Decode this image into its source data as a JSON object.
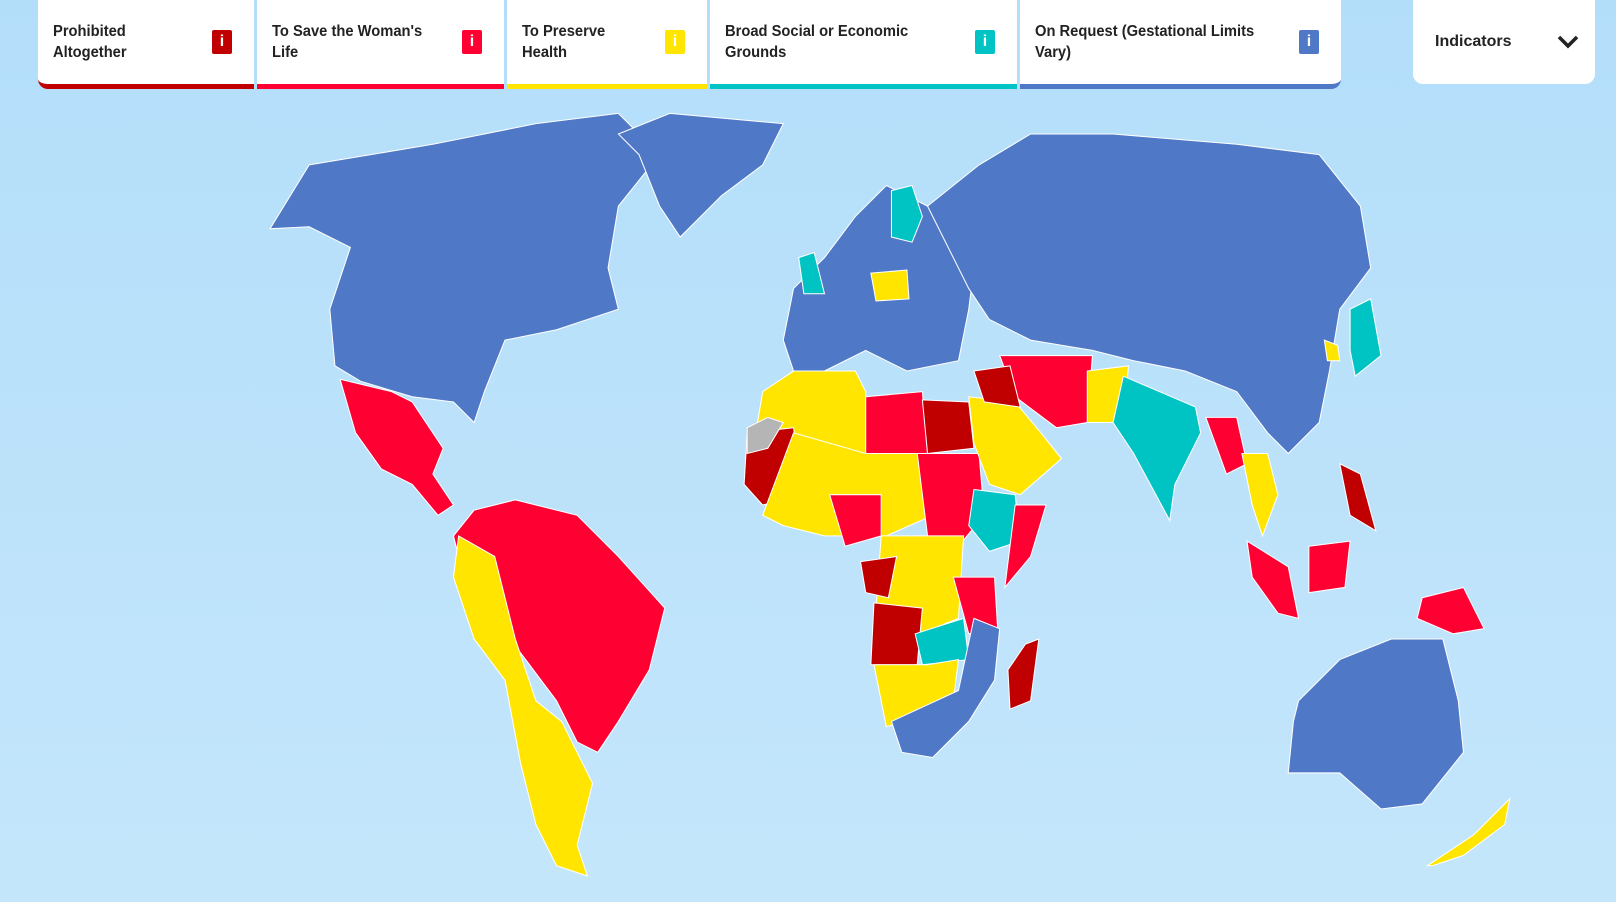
{
  "legend": {
    "categories": [
      {
        "label": "Prohibited Altogether",
        "color": "#c00000",
        "icon": "info-icon",
        "icon_text": "i"
      },
      {
        "label": "To Save the Woman's Life",
        "color": "#ff0033",
        "icon": "info-icon",
        "icon_text": "i"
      },
      {
        "label": "To Preserve Health",
        "color": "#ffe500",
        "icon": "info-icon",
        "icon_text": "i"
      },
      {
        "label": "Broad Social or Economic Grounds",
        "color": "#00c4c4",
        "icon": "info-icon",
        "icon_text": "i"
      },
      {
        "label": "On Request (Gestational Limits Vary)",
        "color": "#4f78c6",
        "icon": "info-icon",
        "icon_text": "i"
      }
    ]
  },
  "indicators": {
    "label": "Indicators",
    "icon": "chevron-down-icon"
  },
  "map": {
    "ocean_color": "#b9e1fb",
    "no_data_color": "#b5b5b5",
    "regions": [
      {
        "name": "north-america",
        "category": 4
      },
      {
        "name": "greenland",
        "category": 4
      },
      {
        "name": "mexico-central-america",
        "category": 1
      },
      {
        "name": "south-america-east",
        "category": 1
      },
      {
        "name": "south-america-andes",
        "category": 2
      },
      {
        "name": "europe",
        "category": 4
      },
      {
        "name": "russia-asia",
        "category": 4
      },
      {
        "name": "finland",
        "category": 3
      },
      {
        "name": "united-kingdom",
        "category": 3
      },
      {
        "name": "poland",
        "category": 2
      },
      {
        "name": "north-africa",
        "category": 2
      },
      {
        "name": "libya",
        "category": 1
      },
      {
        "name": "egypt",
        "category": 0
      },
      {
        "name": "mauritania-mali",
        "category": 0
      },
      {
        "name": "western-sahara",
        "category": -1
      },
      {
        "name": "sahel",
        "category": 2
      },
      {
        "name": "nigeria",
        "category": 1
      },
      {
        "name": "sudan-chad",
        "category": 1
      },
      {
        "name": "ethiopia",
        "category": 3
      },
      {
        "name": "somalia",
        "category": 1
      },
      {
        "name": "central-africa",
        "category": 2
      },
      {
        "name": "congo",
        "category": 0
      },
      {
        "name": "angola",
        "category": 0
      },
      {
        "name": "tanzania",
        "category": 1
      },
      {
        "name": "zambia",
        "category": 3
      },
      {
        "name": "southern-africa",
        "category": 2
      },
      {
        "name": "south-africa",
        "category": 4
      },
      {
        "name": "madagascar",
        "category": 0
      },
      {
        "name": "arabia",
        "category": 2
      },
      {
        "name": "iran",
        "category": 1
      },
      {
        "name": "iraq",
        "category": 0
      },
      {
        "name": "pakistan",
        "category": 2
      },
      {
        "name": "india",
        "category": 3
      },
      {
        "name": "myanmar",
        "category": 1
      },
      {
        "name": "thailand",
        "category": 2
      },
      {
        "name": "indonesia-west",
        "category": 1
      },
      {
        "name": "indonesia-borneo",
        "category": 1
      },
      {
        "name": "papua",
        "category": 1
      },
      {
        "name": "philippines",
        "category": 0
      },
      {
        "name": "japan",
        "category": 3
      },
      {
        "name": "korea",
        "category": 2
      },
      {
        "name": "australia",
        "category": 4
      },
      {
        "name": "new-zealand",
        "category": 2
      }
    ]
  }
}
